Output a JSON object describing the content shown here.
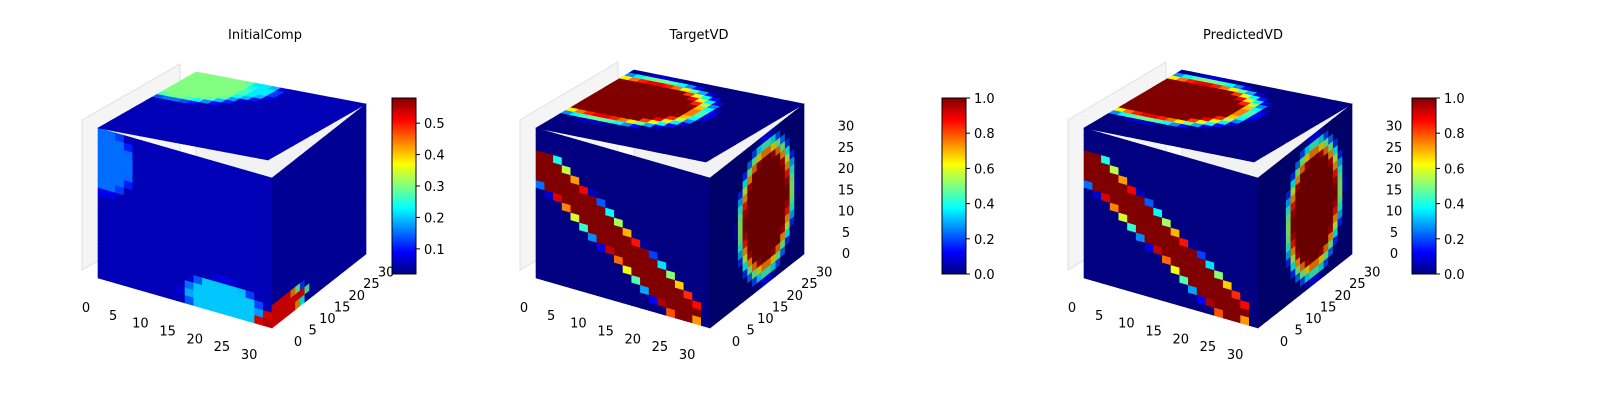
{
  "chart_data": [
    {
      "type": "heatmap",
      "variant": "3d-voxel-cube",
      "title": "InitialComp",
      "axis_ticks": {
        "x": [
          "0",
          "5",
          "10",
          "15",
          "20",
          "25",
          "30"
        ],
        "y": [
          "0",
          "5",
          "10",
          "15",
          "20",
          "25",
          "30"
        ],
        "z": []
      },
      "axis_range": {
        "x": [
          0,
          32
        ],
        "y": [
          0,
          32
        ],
        "z": [
          0,
          32
        ]
      },
      "colormap": "jet",
      "colorbar": {
        "range": [
          0.02,
          0.58
        ],
        "ticks": [
          "0.1",
          "0.2",
          "0.3",
          "0.4",
          "0.5"
        ],
        "tick_values": [
          0.1,
          0.2,
          0.3,
          0.4,
          0.5
        ]
      },
      "faces": {
        "top": [
          {
            "a": 0.1,
            "b": 0.15,
            "ra": 0.35,
            "rb": 0.3,
            "v": 0.3
          },
          {
            "a": 0.3,
            "b": 0.1,
            "ra": 0.25,
            "rb": 0.2,
            "v": 0.22
          }
        ],
        "front": [
          {
            "a": 0.72,
            "b": 0.92,
            "ra": 0.25,
            "rb": 0.15,
            "v": 0.2
          },
          {
            "a": 0.05,
            "b": 0.2,
            "ra": 0.18,
            "rb": 0.25,
            "v": 0.15
          },
          {
            "a": 0.96,
            "b": 0.96,
            "ra": 0.05,
            "rb": 0.05,
            "v": 0.55
          }
        ],
        "side": [
          {
            "a": 0.1,
            "b": 0.93,
            "ra": 0.3,
            "rb": 0.08,
            "v": 0.52
          }
        ],
        "base": 0.05
      }
    },
    {
      "type": "heatmap",
      "variant": "3d-voxel-cube",
      "title": "TargetVD",
      "axis_ticks": {
        "x": [
          "0",
          "5",
          "10",
          "15",
          "20",
          "25",
          "30"
        ],
        "y": [
          "0",
          "5",
          "10",
          "15",
          "20",
          "25",
          "30"
        ],
        "z": [
          "0",
          "5",
          "10",
          "15",
          "20",
          "25",
          "30"
        ]
      },
      "axis_range": {
        "x": [
          0,
          32
        ],
        "y": [
          0,
          32
        ],
        "z": [
          0,
          32
        ]
      },
      "colormap": "jet",
      "colorbar": {
        "range": [
          0.0,
          1.0
        ],
        "ticks": [
          "0.0",
          "0.2",
          "0.4",
          "0.6",
          "0.8",
          "1.0"
        ],
        "tick_values": [
          0,
          0.2,
          0.4,
          0.6,
          0.8,
          1.0
        ]
      },
      "faces": {
        "top": [
          {
            "a": 0.2,
            "b": 0.4,
            "ra": 0.45,
            "rb": 0.35,
            "v": 1.0
          }
        ],
        "front": [
          {
            "line": [
              0.05,
              0.25,
              0.85,
              0.92
            ],
            "w": 0.11,
            "v": 1.0
          }
        ],
        "side": [
          {
            "a": 0.6,
            "b": 0.5,
            "ra": 0.3,
            "rb": 0.45,
            "v": 1.0
          }
        ],
        "base": 0.0
      }
    },
    {
      "type": "heatmap",
      "variant": "3d-voxel-cube",
      "title": "PredictedVD",
      "axis_ticks": {
        "x": [
          "0",
          "5",
          "10",
          "15",
          "20",
          "25",
          "30"
        ],
        "y": [
          "0",
          "5",
          "10",
          "15",
          "20",
          "25",
          "30"
        ],
        "z": [
          "0",
          "5",
          "10",
          "15",
          "20",
          "25",
          "30"
        ]
      },
      "axis_range": {
        "x": [
          0,
          32
        ],
        "y": [
          0,
          32
        ],
        "z": [
          0,
          32
        ]
      },
      "colormap": "jet",
      "colorbar": {
        "range": [
          0.0,
          1.0
        ],
        "ticks": [
          "0.0",
          "0.2",
          "0.4",
          "0.6",
          "0.8",
          "1.0"
        ],
        "tick_values": [
          0,
          0.2,
          0.4,
          0.6,
          0.8,
          1.0
        ]
      },
      "faces": {
        "top": [
          {
            "a": 0.2,
            "b": 0.4,
            "ra": 0.45,
            "rb": 0.35,
            "v": 1.0
          }
        ],
        "front": [
          {
            "line": [
              0.05,
              0.25,
              0.85,
              0.92
            ],
            "w": 0.11,
            "v": 1.0
          }
        ],
        "side": [
          {
            "a": 0.6,
            "b": 0.5,
            "ra": 0.3,
            "rb": 0.45,
            "v": 1.0
          }
        ],
        "base": 0.0
      }
    }
  ]
}
